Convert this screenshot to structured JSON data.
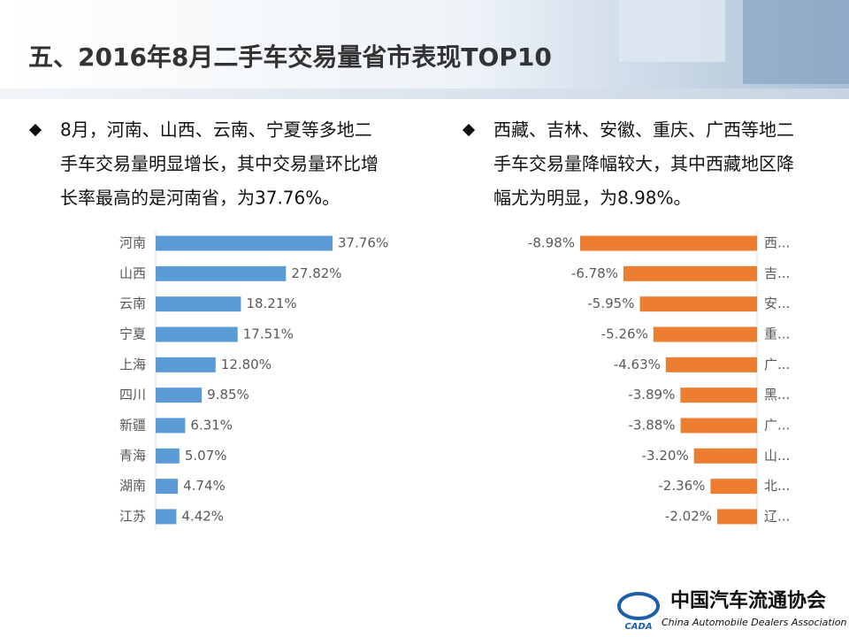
{
  "title": "五、2016年8月二手车交易量省市表现TOP10",
  "bullets": [
    {
      "lines": [
        "8月，河南、山西、云南、宁夏等多地二",
        "手车交易量明显增长，其中交易量环比增",
        "长率最高的是河南省，为37.76%。"
      ]
    },
    {
      "lines": [
        "西藏、吉林、安徽、重庆、广西等地二",
        "手车交易量降幅较大，其中西藏地区降",
        "幅尤为明显，为8.98%。"
      ]
    }
  ],
  "logo": {
    "name": "中国汽车流通协会",
    "english": "China Automobile Dealers Association",
    "abbr": "CADA"
  },
  "chart_data": [
    {
      "type": "hbar",
      "color": "#5b9bd5",
      "categories": [
        "河南",
        "山西",
        "云南",
        "宁夏",
        "上海",
        "四川",
        "新疆",
        "青海",
        "湖南",
        "江苏"
      ],
      "values": [
        37.76,
        27.82,
        18.21,
        17.51,
        12.8,
        9.85,
        6.31,
        5.07,
        4.74,
        4.42
      ],
      "value_labels": [
        "37.76%",
        "27.82%",
        "18.21%",
        "17.51%",
        "12.80%",
        "9.85%",
        "6.31%",
        "5.07%",
        "4.74%",
        "4.42%"
      ]
    },
    {
      "type": "hbar",
      "color": "#ed7d31",
      "categories": [
        "西...",
        "吉...",
        "安...",
        "重...",
        "广...",
        "黑...",
        "广...",
        "山...",
        "北...",
        "辽..."
      ],
      "values": [
        -8.98,
        -6.78,
        -5.95,
        -5.26,
        -4.63,
        -3.89,
        -3.88,
        -3.2,
        -2.36,
        -2.02
      ],
      "value_labels": [
        "-8.98%",
        "-6.78%",
        "-5.95%",
        "-5.26%",
        "-4.63%",
        "-3.89%",
        "-3.88%",
        "-3.20%",
        "-2.36%",
        "-2.02%"
      ]
    }
  ]
}
